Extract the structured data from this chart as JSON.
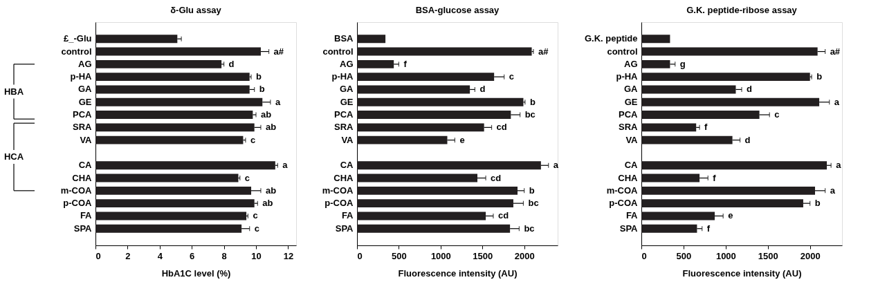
{
  "chart_data": [
    {
      "type": "bar",
      "orientation": "horizontal",
      "title": "δ-Glu assay",
      "xlabel": "HbA1C level (%)",
      "categories": [
        "£_-Glu",
        "control",
        "AG",
        "p-HA",
        "GA",
        "GE",
        "PCA",
        "SRA",
        "VA",
        null,
        "CA",
        "CHA",
        "m-COA",
        "p-COA",
        "FA",
        "SPA"
      ],
      "values": [
        5.1,
        10.3,
        7.85,
        9.6,
        9.6,
        10.4,
        9.8,
        9.9,
        9.2,
        null,
        11.2,
        8.9,
        9.7,
        9.9,
        9.4,
        9.1
      ],
      "errors": [
        [
          5.1,
          5.35
        ],
        [
          10.3,
          10.8
        ],
        [
          7.85,
          8.0
        ],
        [
          9.6,
          9.7
        ],
        [
          9.6,
          9.9
        ],
        [
          10.4,
          10.9
        ],
        [
          9.8,
          10.0
        ],
        [
          9.9,
          10.3
        ],
        [
          9.2,
          9.35
        ],
        null,
        [
          11.2,
          11.35
        ],
        [
          8.9,
          9.0
        ],
        [
          9.7,
          10.3
        ],
        [
          9.9,
          10.1
        ],
        [
          9.4,
          9.5
        ],
        [
          9.1,
          9.6
        ]
      ],
      "value_labels": [
        null,
        "a#",
        "d",
        "b",
        "b",
        "a",
        "ab",
        "ab",
        "c",
        null,
        "a",
        "c",
        "ab",
        "ab",
        "c",
        "c"
      ],
      "color": "#231f20",
      "xlim": [
        0,
        12.5
      ],
      "xticks": [
        0,
        2,
        4,
        6,
        8,
        10,
        12
      ],
      "grid": false,
      "annotations": [
        "HBA",
        "HCA"
      ]
    },
    {
      "type": "bar",
      "orientation": "horizontal",
      "title": "BSA-glucose assay",
      "xlabel": "Fluorescence intensity (AU)",
      "categories": [
        "BSA",
        "control",
        "AG",
        "p-HA",
        "GA",
        "GE",
        "PCA",
        "SRA",
        "VA",
        null,
        "CA",
        "CHA",
        "m-COA",
        "p-COA",
        "FA",
        "SPA"
      ],
      "values": [
        340,
        2090,
        440,
        1640,
        1350,
        1990,
        1840,
        1520,
        1080,
        null,
        2200,
        1440,
        1920,
        1870,
        1540,
        1830
      ],
      "errors": [
        null,
        [
          2090,
          2110
        ],
        [
          440,
          500
        ],
        [
          1640,
          1760
        ],
        [
          1350,
          1410
        ],
        [
          1990,
          2010
        ],
        [
          1840,
          1950
        ],
        [
          1520,
          1610
        ],
        [
          1080,
          1170
        ],
        null,
        [
          2200,
          2290
        ],
        [
          1440,
          1540
        ],
        [
          1920,
          2000
        ],
        [
          1870,
          1990
        ],
        [
          1540,
          1630
        ],
        [
          1830,
          1940
        ]
      ],
      "value_labels": [
        null,
        "a#",
        "f",
        "c",
        "d",
        "b",
        "bc",
        "cd",
        "e",
        null,
        "a",
        "cd",
        "b",
        "bc",
        "cd",
        "bc"
      ],
      "color": "#231f20",
      "xlim": [
        0,
        2400
      ],
      "xticks": [
        0,
        500,
        1000,
        1500,
        2000
      ],
      "grid": false
    },
    {
      "type": "bar",
      "orientation": "horizontal",
      "title": "G.K. peptide-ribose assay",
      "xlabel": "Fluorescence intensity (AU)",
      "categories": [
        "G.K. peptide",
        "control",
        "AG",
        "p-HA",
        "GA",
        "GE",
        "PCA",
        "SRA",
        "VA",
        null,
        "CA",
        "CHA",
        "m-COA",
        "p-COA",
        "FA",
        "SPA"
      ],
      "values": [
        340,
        2090,
        340,
        2000,
        1120,
        2110,
        1400,
        650,
        1080,
        null,
        2200,
        690,
        2060,
        1920,
        870,
        660
      ],
      "errors": [
        null,
        [
          2090,
          2180
        ],
        [
          340,
          400
        ],
        [
          2000,
          2020
        ],
        [
          1120,
          1190
        ],
        [
          2110,
          2230
        ],
        [
          1400,
          1520
        ],
        [
          650,
          690
        ],
        [
          1080,
          1170
        ],
        null,
        [
          2200,
          2250
        ],
        [
          690,
          790
        ],
        [
          2060,
          2180
        ],
        [
          1920,
          2000
        ],
        [
          870,
          970
        ],
        [
          660,
          720
        ]
      ],
      "value_labels": [
        null,
        "a#",
        "g",
        "b",
        "d",
        "a",
        "c",
        "f",
        "d",
        null,
        "a",
        "f",
        "a",
        "b",
        "e",
        "f"
      ],
      "color": "#231f20",
      "xlim": [
        0,
        2380
      ],
      "xticks": [
        0,
        500,
        1000,
        1500,
        2000
      ],
      "grid": false
    }
  ]
}
